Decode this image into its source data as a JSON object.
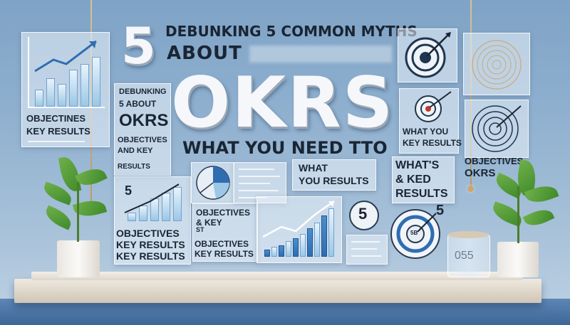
{
  "headline": {
    "number": "5",
    "line1": "DEBUNKING 5 COMMON MYTHS",
    "line2": "ABOUT",
    "main": "OKRS",
    "sub": "WHAT YOU NEED TTO"
  },
  "left_panel": {
    "label1": "OBJECTINES",
    "label2": "KEY RESULTS"
  },
  "center_left_panel": {
    "line1": "DEBUNKING",
    "line2": "5 ABOUT",
    "line3": "OKRS",
    "line4": "OBJECTIVES",
    "line5": "AND KEY",
    "line6": "RESULTS"
  },
  "lower_left_panel": {
    "number": "5",
    "label1": "OBJECTIVES",
    "label2": "KEY RESULTS",
    "label3": "KEY RESULTS"
  },
  "center_lower_panel": {
    "line1": "OBJECTIVES",
    "line2": "& KEY",
    "line3": "ST",
    "line4": "OBJECTIVES",
    "line5": "KEY RESULTS"
  },
  "what_panel": {
    "line1": "WHAT",
    "line2": "YOU RESULTS"
  },
  "right_panels": {
    "target_panel_line1": "WHAT YOU",
    "target_panel_line2": "KEY RESULTS",
    "whats_line1": "WHAT'S",
    "whats_line2": "& KED",
    "whats_line3": "RESULTS",
    "objectives": "OBJECTIVES",
    "okrs": "OKRS"
  },
  "small_graphics": {
    "circle5": "5",
    "target5": "5",
    "target_center": "5B",
    "cylinder": "055"
  },
  "colors": {
    "wall": "#8fb0cf",
    "accent_blue": "#2f6db1",
    "light_blue": "#9cc7e6",
    "leaf_green": "#4f9a35",
    "pot_white": "#f4f2ee"
  }
}
